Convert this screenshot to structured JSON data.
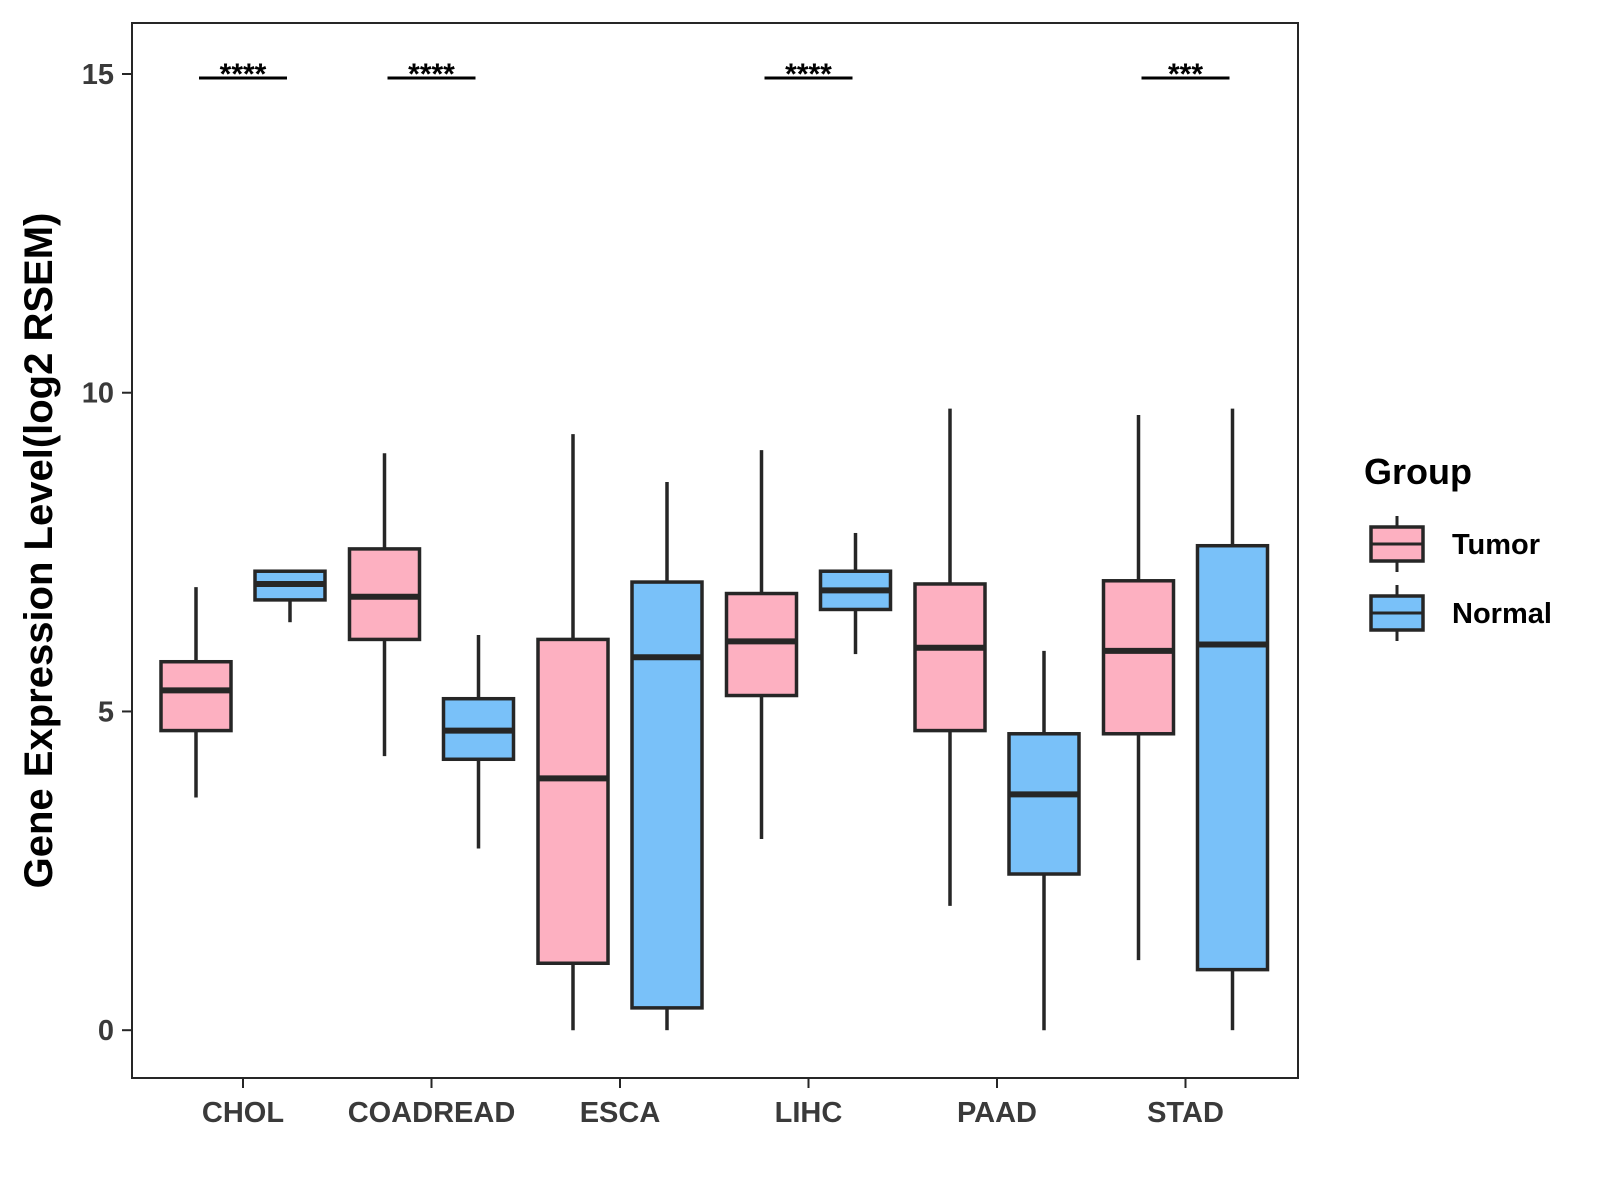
{
  "chart_data": {
    "type": "boxplot",
    "title": "",
    "xlabel": "",
    "ylabel": "Gene Expression Level(log2 RSEM)",
    "ylim": [
      -0.75,
      15.8
    ],
    "yticks": [
      0,
      5,
      10,
      15
    ],
    "ytick_labels": [
      "0",
      "5",
      "10",
      "15"
    ],
    "grid": false,
    "legend": {
      "title": "Group",
      "position": "right",
      "entries": [
        {
          "label": "Tumor",
          "color": "#FDB0C1"
        },
        {
          "label": "Normal",
          "color": "#79C1F9"
        }
      ]
    },
    "categories": [
      "CHOL",
      "COADREAD",
      "ESCA",
      "LIHC",
      "PAAD",
      "STAD"
    ],
    "series": [
      {
        "name": "Tumor",
        "color": "#FDB0C1",
        "boxes": [
          {
            "whisker_low": 3.65,
            "q1": 4.7,
            "median": 5.33,
            "q3": 5.78,
            "whisker_high": 6.95
          },
          {
            "whisker_low": 4.3,
            "q1": 6.13,
            "median": 6.8,
            "q3": 7.55,
            "whisker_high": 9.05
          },
          {
            "whisker_low": 0.0,
            "q1": 1.05,
            "median": 3.95,
            "q3": 6.13,
            "whisker_high": 9.35
          },
          {
            "whisker_low": 3.0,
            "q1": 5.25,
            "median": 6.1,
            "q3": 6.85,
            "whisker_high": 9.1
          },
          {
            "whisker_low": 1.95,
            "q1": 4.7,
            "median": 6.0,
            "q3": 7.0,
            "whisker_high": 9.75
          },
          {
            "whisker_low": 1.1,
            "q1": 4.65,
            "median": 5.95,
            "q3": 7.05,
            "whisker_high": 9.65
          }
        ]
      },
      {
        "name": "Normal",
        "color": "#79C1F9",
        "boxes": [
          {
            "whisker_low": 6.4,
            "q1": 6.75,
            "median": 7.0,
            "q3": 7.2,
            "whisker_high": 7.2
          },
          {
            "whisker_low": 2.85,
            "q1": 4.25,
            "median": 4.7,
            "q3": 5.2,
            "whisker_high": 6.2
          },
          {
            "whisker_low": 0.0,
            "q1": 0.35,
            "median": 5.85,
            "q3": 7.03,
            "whisker_high": 8.6
          },
          {
            "whisker_low": 5.9,
            "q1": 6.6,
            "median": 6.9,
            "q3": 7.2,
            "whisker_high": 7.8
          },
          {
            "whisker_low": 0.0,
            "q1": 2.45,
            "median": 3.7,
            "q3": 4.65,
            "whisker_high": 5.95
          },
          {
            "whisker_low": 0.0,
            "q1": 0.95,
            "median": 6.05,
            "q3": 7.6,
            "whisker_high": 9.75
          }
        ]
      }
    ],
    "significance": [
      {
        "category": "CHOL",
        "label": "****",
        "y": 15.0
      },
      {
        "category": "COADREAD",
        "label": "****",
        "y": 15.0
      },
      {
        "category": "LIHC",
        "label": "****",
        "y": 15.0
      },
      {
        "category": "STAD",
        "label": "***",
        "y": 15.0
      }
    ]
  }
}
